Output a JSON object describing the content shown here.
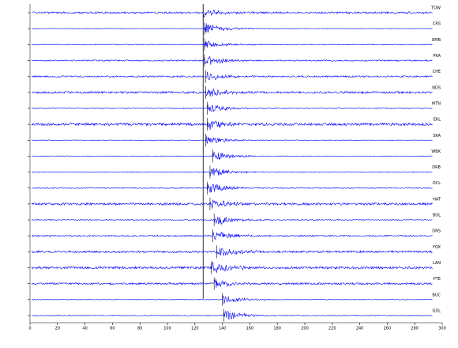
{
  "chart_data": {
    "type": "seismogram",
    "xlim": [
      0,
      300
    ],
    "xticks": [
      0,
      20,
      40,
      60,
      80,
      100,
      120,
      140,
      160,
      180,
      200,
      220,
      240,
      260,
      280,
      300
    ],
    "origin_time": 126,
    "color": "#0000ff",
    "traces": [
      {
        "station": "TOW",
        "arrival": 126,
        "amplitude": 6,
        "noise": 1.2
      },
      {
        "station": "CRS",
        "arrival": 127,
        "amplitude": 8,
        "noise": 0.3
      },
      {
        "station": "EMB",
        "arrival": 127,
        "amplitude": 6,
        "noise": 0.5
      },
      {
        "station": "PKA",
        "arrival": 127,
        "amplitude": 7,
        "noise": 0.8
      },
      {
        "station": "CHE",
        "arrival": 128,
        "amplitude": 6,
        "noise": 1.0
      },
      {
        "station": "NDS",
        "arrival": 128,
        "amplitude": 7,
        "noise": 1.3
      },
      {
        "station": "MTN",
        "arrival": 129,
        "amplitude": 6,
        "noise": 0.5
      },
      {
        "station": "EKL",
        "arrival": 129,
        "amplitude": 8,
        "noise": 1.6
      },
      {
        "station": "SKA",
        "arrival": 128,
        "amplitude": 6,
        "noise": 0.4
      },
      {
        "station": "WBK",
        "arrival": 133,
        "amplitude": 7,
        "noise": 0.4
      },
      {
        "station": "DRB",
        "arrival": 131,
        "amplitude": 7,
        "noise": 0.5
      },
      {
        "station": "OCL",
        "arrival": 129,
        "amplitude": 7,
        "noise": 0.6
      },
      {
        "station": "HAT",
        "arrival": 131,
        "amplitude": 7,
        "noise": 1.4
      },
      {
        "station": "BOL",
        "arrival": 134,
        "amplitude": 8,
        "noise": 0.6
      },
      {
        "station": "DNS",
        "arrival": 133,
        "amplitude": 7,
        "noise": 0.9
      },
      {
        "station": "FOX",
        "arrival": 136,
        "amplitude": 8,
        "noise": 1.3
      },
      {
        "station": "LAN",
        "arrival": 132,
        "amplitude": 7,
        "noise": 1.5
      },
      {
        "station": "PTE",
        "arrival": 134,
        "amplitude": 7,
        "noise": 1.2
      },
      {
        "station": "BUC",
        "arrival": 140,
        "amplitude": 6,
        "noise": 0.4
      },
      {
        "station": "GDL",
        "arrival": 141,
        "amplitude": 7,
        "noise": 0.5
      }
    ]
  }
}
